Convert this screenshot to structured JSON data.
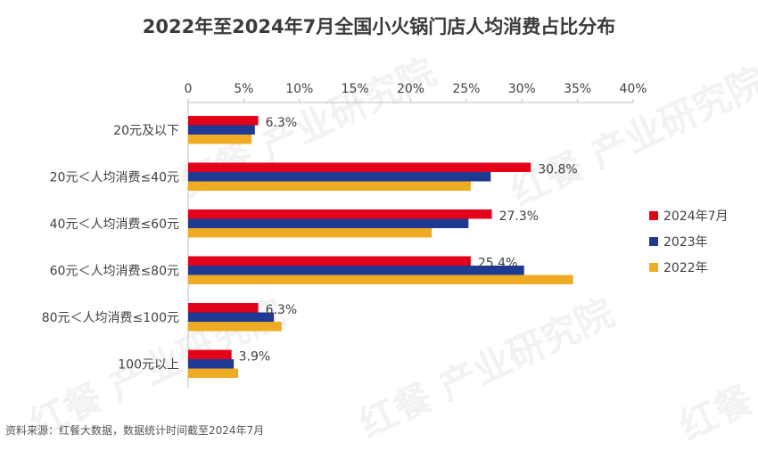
{
  "title": "2022年至2024年7月全国小火锅门店人均消费占比分布",
  "source": "资料来源：红餐大数据，数据统计时间截至2024年7月",
  "watermark": "红餐 产业研究院",
  "chart_data": {
    "type": "bar",
    "orientation": "horizontal",
    "categories": [
      "20元及以下",
      "20元＜人均消费≤40元",
      "40元＜人均消费≤60元",
      "60元＜人均消费≤80元",
      "80元＜人均消费≤100元",
      "100元以上"
    ],
    "series": [
      {
        "name": "2024年7月",
        "color": "#e2001a",
        "values": [
          6.3,
          30.8,
          27.3,
          25.4,
          6.3,
          3.9
        ]
      },
      {
        "name": "2023年",
        "color": "#1f3a93",
        "values": [
          6.0,
          27.2,
          25.2,
          30.2,
          7.7,
          4.1
        ]
      },
      {
        "name": "2022年",
        "color": "#f0ab25",
        "values": [
          5.7,
          25.4,
          21.9,
          34.6,
          8.4,
          4.5
        ]
      }
    ],
    "data_labels": [
      "6.3%",
      "30.8%",
      "27.3%",
      "25.4%",
      "6.3%",
      "3.9%"
    ],
    "xlim": [
      0,
      40
    ],
    "xticks": [
      "0",
      "5%",
      "10%",
      "15%",
      "20%",
      "25%",
      "30%",
      "35%",
      "40%"
    ],
    "xaxis_position": "top",
    "legend_position": "right",
    "grid": false
  }
}
